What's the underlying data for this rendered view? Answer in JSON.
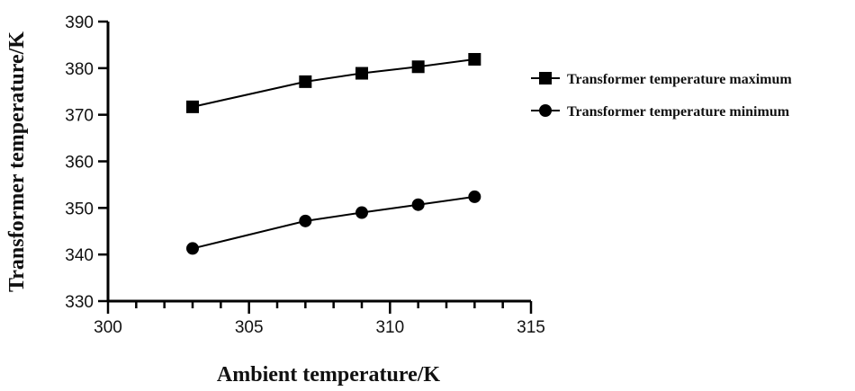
{
  "chart_data": {
    "type": "line",
    "xlabel": "Ambient temperature/K",
    "ylabel": "Transformer temperature/K",
    "xlim": [
      300,
      315
    ],
    "ylim": [
      330,
      390
    ],
    "xticks": [
      300,
      305,
      310,
      315
    ],
    "yticks": [
      330,
      340,
      350,
      360,
      370,
      380,
      390
    ],
    "x_minor_step": 1,
    "grid": false,
    "legend_position": "right",
    "x": [
      303,
      307,
      309,
      311,
      313
    ],
    "series": [
      {
        "name": "Transformer temperature maximum",
        "marker": "square",
        "color": "#000000",
        "values": [
          371.7,
          377.1,
          378.9,
          380.3,
          381.9
        ]
      },
      {
        "name": "Transformer temperature minimum",
        "marker": "circle",
        "color": "#000000",
        "values": [
          341.3,
          347.2,
          349.0,
          350.7,
          352.4
        ]
      }
    ]
  }
}
